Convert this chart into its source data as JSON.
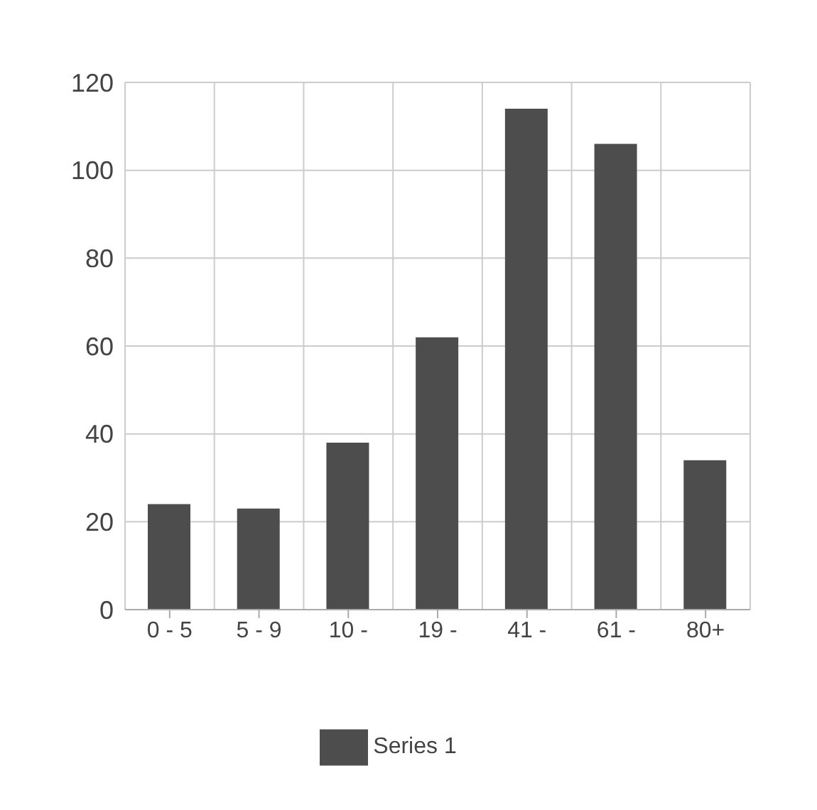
{
  "chart_data": {
    "type": "bar",
    "categories": [
      "0 - 5",
      "5 - 9",
      "10 -",
      "19 -",
      "41 -",
      "61 -",
      "80+"
    ],
    "series": [
      {
        "name": "Series 1",
        "color": "#4d4d4d",
        "values": [
          24,
          23,
          38,
          62,
          114,
          106,
          34
        ]
      }
    ],
    "ylim": [
      0,
      120
    ],
    "yticks": [
      0,
      20,
      40,
      60,
      80,
      100,
      120
    ],
    "grid": true,
    "legend": "bottom"
  }
}
